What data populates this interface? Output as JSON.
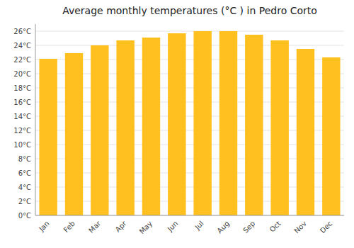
{
  "chart_data": {
    "type": "bar",
    "title": "Average monthly temperatures (°C ) in Pedro Corto",
    "categories": [
      "Jan",
      "Feb",
      "Mar",
      "Apr",
      "May",
      "Jun",
      "Jul",
      "Aug",
      "Sep",
      "Oct",
      "Nov",
      "Dec"
    ],
    "values": [
      22.1,
      22.9,
      24.0,
      24.7,
      25.1,
      25.7,
      26.0,
      26.0,
      25.5,
      24.7,
      23.5,
      22.3
    ],
    "color": "#FFC020",
    "ylim": [
      0,
      27
    ],
    "yticks": [
      {
        "value": 0,
        "label": "0°C"
      },
      {
        "value": 2,
        "label": "2°C"
      },
      {
        "value": 4,
        "label": "4°C"
      },
      {
        "value": 6,
        "label": "6°C"
      },
      {
        "value": 8,
        "label": "8°C"
      },
      {
        "value": 10,
        "label": "10°C"
      },
      {
        "value": 12,
        "label": "12°C"
      },
      {
        "value": 14,
        "label": "14°C"
      },
      {
        "value": 16,
        "label": "16°C"
      },
      {
        "value": 18,
        "label": "18°C"
      },
      {
        "value": 20,
        "label": "20°C"
      },
      {
        "value": 22,
        "label": "22°C"
      },
      {
        "value": 24,
        "label": "24°C"
      },
      {
        "value": 26,
        "label": "26°C"
      }
    ],
    "grid": true
  }
}
